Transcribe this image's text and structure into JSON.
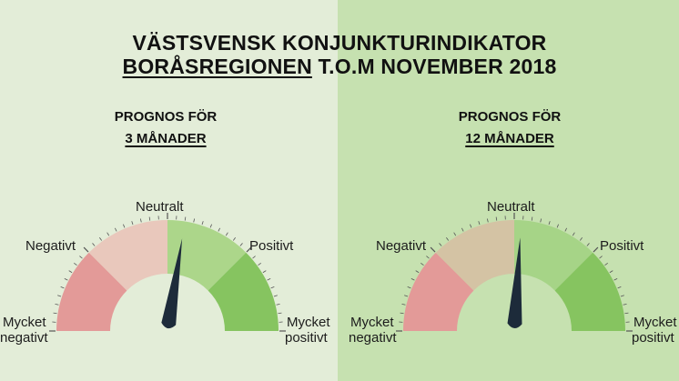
{
  "title": {
    "line1": "VÄSTSVENSK KONJUNKTURINDIKATOR",
    "line2_underlined": "BORÅSREGIONEN",
    "line2_rest": "T.O.M NOVEMBER 2018"
  },
  "gauges": [
    {
      "heading": "PROGNOS FÖR",
      "period": "3 MÅNADER",
      "needle_fraction": 0.55,
      "labels": {
        "neutral": "Neutralt",
        "negative": "Negativt",
        "positive": "Positivt",
        "very_negative_1": "Mycket",
        "very_negative_2": "negativt",
        "very_positive_1": "Mycket",
        "very_positive_2": "positivt"
      }
    },
    {
      "heading": "PROGNOS FÖR",
      "period": "12 MÅNADER",
      "needle_fraction": 0.52,
      "labels": {
        "neutral": "Neutralt",
        "negative": "Negativt",
        "positive": "Positivt",
        "very_negative_1": "Mycket",
        "very_negative_2": "negativt",
        "very_positive_1": "Mycket",
        "very_positive_2": "positivt"
      }
    }
  ],
  "colors": {
    "left_background": "#e3edd8",
    "right_background": "#c6e1b0",
    "very_negative": "#e39a98",
    "negative_left": "#e9c8bc",
    "negative_right": "#d4c3a4",
    "positive_left": "#acd68a",
    "positive_right": "#a6d487",
    "very_positive": "#86c460",
    "needle": "#1d2b3a",
    "ticks": "#555555"
  }
}
